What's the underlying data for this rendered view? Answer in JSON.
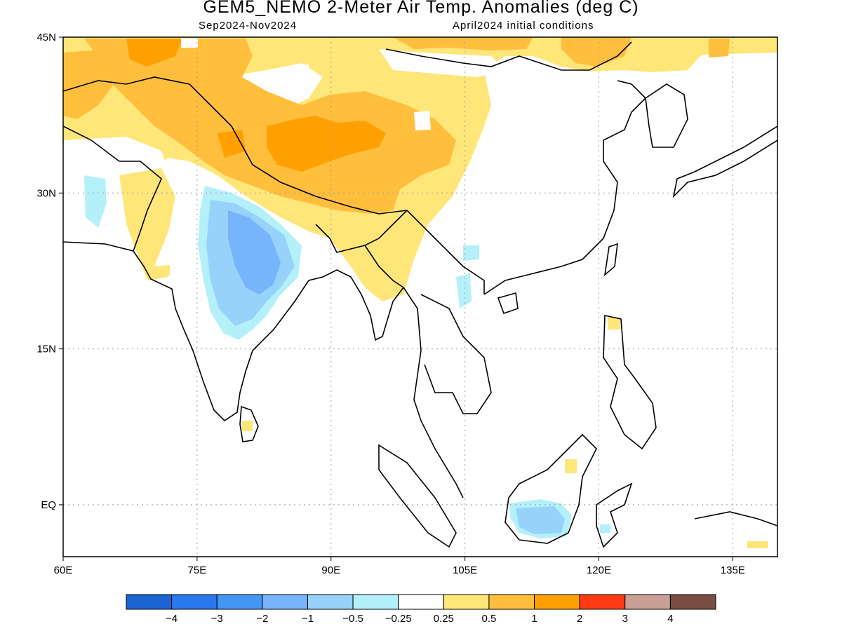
{
  "title": "GEM5_NEMO 2-Meter Air Temp. Anomalies (deg C)",
  "subtitle_left": "Sep2024-Nov2024",
  "subtitle_right": "April2024 initial conditions",
  "map": {
    "lon_range": [
      60,
      140
    ],
    "lat_range": [
      -5,
      45
    ],
    "x_ticks": [
      {
        "value": 60,
        "label": "60E"
      },
      {
        "value": 75,
        "label": "75E"
      },
      {
        "value": 90,
        "label": "90E"
      },
      {
        "value": 105,
        "label": "105E"
      },
      {
        "value": 120,
        "label": "120E"
      },
      {
        "value": 135,
        "label": "135E"
      }
    ],
    "y_ticks": [
      {
        "value": 45,
        "label": "45N"
      },
      {
        "value": 30,
        "label": "30N"
      },
      {
        "value": 15,
        "label": "15N"
      },
      {
        "value": 0,
        "label": "EQ"
      }
    ],
    "grid": "dotted"
  },
  "colorbar": {
    "colors": [
      "#1c64d2",
      "#2a78ee",
      "#4496f5",
      "#78b4f9",
      "#96d2fa",
      "#b4f0fa",
      "#ffffff",
      "#ffe678",
      "#ffbe3c",
      "#ffa000",
      "#ff3c14",
      "#c8a096",
      "#784e44"
    ],
    "labels": [
      "-4",
      "-3",
      "-2",
      "-1",
      "-0.5",
      "-0.25",
      "0.25",
      "0.5",
      "1",
      "2",
      "3",
      "4"
    ]
  },
  "legend_colors": {
    "light_warm": "#ffe678",
    "warm": "#ffbe3c",
    "warmer": "#ffa000",
    "light_cool": "#b4f0fa",
    "cool": "#96d2fa",
    "cooler": "#78b4f9"
  }
}
